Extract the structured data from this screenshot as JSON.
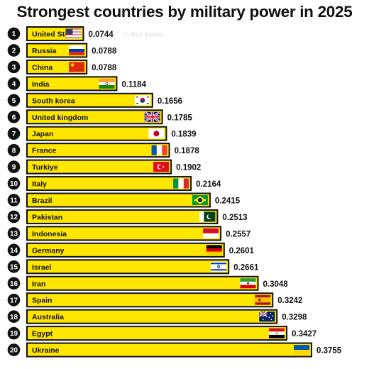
{
  "chart_data": {
    "type": "bar",
    "orientation": "horizontal",
    "title": "Strongest countries by military power in 2025",
    "ghost_text": "United States",
    "bar_color": "#ffe600",
    "bar_border_color": "#111111",
    "rank_badge_color": "#111111",
    "categories": [
      "United States",
      "Russia",
      "China",
      "India",
      "South korea",
      "United kingdom",
      "Japan",
      "France",
      "Turkiye",
      "Italy",
      "Brazil",
      "Pakistan",
      "Indonesia",
      "Germany",
      "Israel",
      "Iran",
      "Spain",
      "Australia",
      "Egypt",
      "Ukraine"
    ],
    "display_labels": [
      "United Sta",
      "Russia",
      "China",
      "India",
      "South korea",
      "United kingdom",
      "Japan",
      "France",
      "Turkiye",
      "Italy",
      "Brazil",
      "Pakistan",
      "Indonesia",
      "Germany",
      "Israel",
      "Iran",
      "Spain",
      "Australia",
      "Egypt",
      "Ukraine"
    ],
    "ranks": [
      "1",
      "2",
      "3",
      "4",
      "5",
      "6",
      "7",
      "8",
      "9",
      "10",
      "11",
      "12",
      "13",
      "14",
      "15",
      "16",
      "17",
      "18",
      "19",
      "20"
    ],
    "values": [
      0.0744,
      0.0788,
      0.0788,
      0.1184,
      0.1656,
      0.1785,
      0.1839,
      0.1878,
      0.1902,
      0.2164,
      0.2415,
      0.2513,
      0.2557,
      0.2601,
      0.2661,
      0.3048,
      0.3242,
      0.3298,
      0.3427,
      0.3755
    ],
    "value_labels": [
      "0.0744",
      "0.0788",
      "0.0788",
      "0.1184",
      "0.1656",
      "0.1785",
      "0.1839",
      "0.1878",
      "0.1902",
      "0.2164",
      "0.2415",
      "0.2513",
      "0.2557",
      "0.2601",
      "0.2661",
      "0.3048",
      "0.3242",
      "0.3298",
      "0.3427",
      "0.3755"
    ],
    "flag_icons": [
      "usa-flag-icon",
      "russia-flag-icon",
      "china-flag-icon",
      "india-flag-icon",
      "south-korea-flag-icon",
      "uk-flag-icon",
      "japan-flag-icon",
      "france-flag-icon",
      "turkiye-flag-icon",
      "italy-flag-icon",
      "brazil-flag-icon",
      "pakistan-flag-icon",
      "indonesia-flag-icon",
      "germany-flag-icon",
      "israel-flag-icon",
      "iran-flag-icon",
      "spain-flag-icon",
      "australia-flag-icon",
      "egypt-flag-icon",
      "ukraine-flag-icon"
    ]
  }
}
